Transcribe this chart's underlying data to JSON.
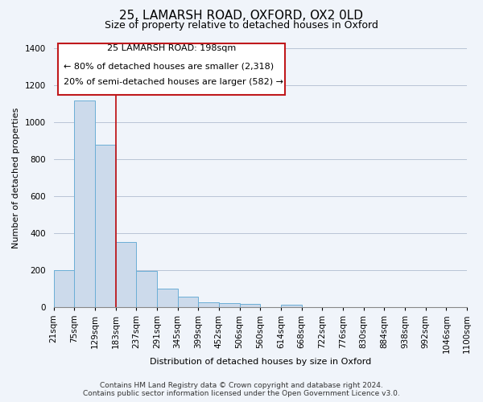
{
  "title": "25, LAMARSH ROAD, OXFORD, OX2 0LD",
  "subtitle": "Size of property relative to detached houses in Oxford",
  "bar_values": [
    200,
    1120,
    880,
    350,
    195,
    100,
    55,
    25,
    20,
    15,
    0,
    10,
    0,
    0,
    0,
    0,
    0,
    0,
    0,
    0
  ],
  "x_labels": [
    "21sqm",
    "75sqm",
    "129sqm",
    "183sqm",
    "237sqm",
    "291sqm",
    "345sqm",
    "399sqm",
    "452sqm",
    "506sqm",
    "560sqm",
    "614sqm",
    "668sqm",
    "722sqm",
    "776sqm",
    "830sqm",
    "884sqm",
    "938sqm",
    "992sqm",
    "1046sqm",
    "1100sqm"
  ],
  "bar_color": "#ccdaeb",
  "bar_edge_color": "#6baed6",
  "ylim": [
    0,
    1400
  ],
  "yticks": [
    0,
    200,
    400,
    600,
    800,
    1000,
    1200,
    1400
  ],
  "ylabel": "Number of detached properties",
  "xlabel": "Distribution of detached houses by size in Oxford",
  "property_label": "25 LAMARSH ROAD: 198sqm",
  "annotation_line1": "← 80% of detached houses are smaller (2,318)",
  "annotation_line2": "20% of semi-detached houses are larger (582) →",
  "box_color": "#c0191c",
  "footer_line1": "Contains HM Land Registry data © Crown copyright and database right 2024.",
  "footer_line2": "Contains public sector information licensed under the Open Government Licence v3.0.",
  "background_color": "#f0f4fa",
  "grid_color": "#b0bcd0",
  "title_fontsize": 11,
  "subtitle_fontsize": 9,
  "axis_label_fontsize": 8,
  "tick_fontsize": 7.5,
  "annotation_fontsize": 8,
  "footer_fontsize": 6.5,
  "property_line_x": 3.0
}
